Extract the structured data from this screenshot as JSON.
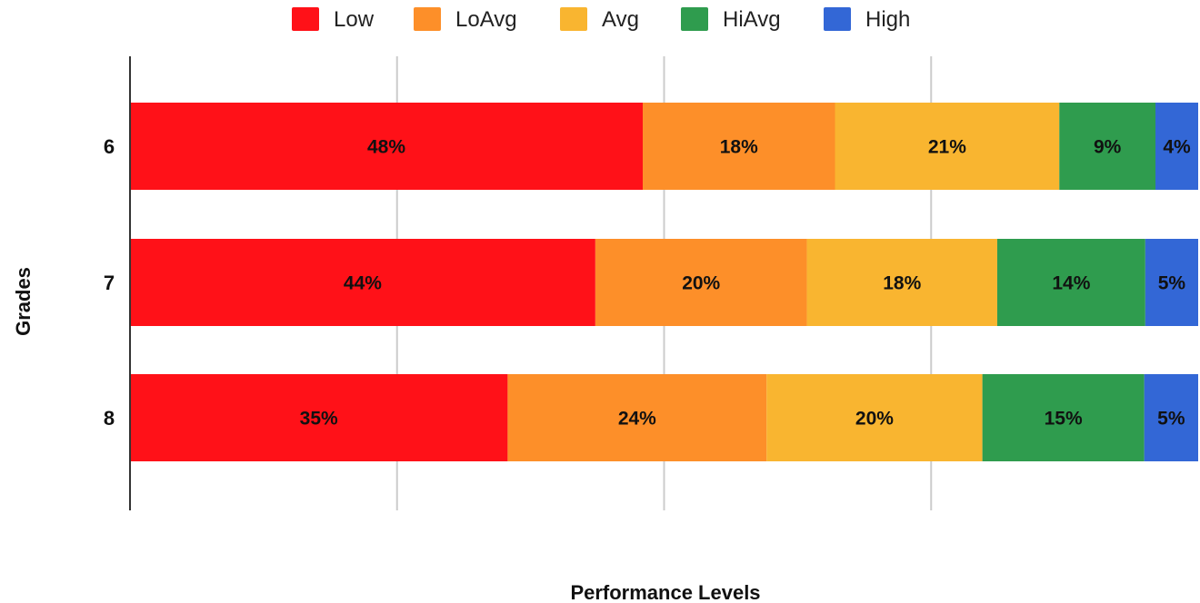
{
  "chart_data": {
    "type": "bar",
    "orientation": "horizontal",
    "stacked": true,
    "categories": [
      "6",
      "7",
      "8"
    ],
    "series": [
      {
        "name": "Low",
        "color": "#ff1118",
        "values": [
          48,
          44,
          35
        ]
      },
      {
        "name": "LoAvg",
        "color": "#fd8f29",
        "values": [
          18,
          20,
          24
        ]
      },
      {
        "name": "Avg",
        "color": "#f9b530",
        "values": [
          21,
          18,
          20
        ]
      },
      {
        "name": "HiAvg",
        "color": "#2f9c4e",
        "values": [
          9,
          14,
          15
        ]
      },
      {
        "name": "High",
        "color": "#3367d6",
        "values": [
          4,
          5,
          5
        ]
      }
    ],
    "data_labels": [
      [
        "48%",
        "18%",
        "21%",
        "9%",
        "4%"
      ],
      [
        "44%",
        "20%",
        "18%",
        "14%",
        "5%"
      ],
      [
        "35%",
        "24%",
        "20%",
        "15%",
        "5%"
      ]
    ],
    "xlabel": "Performance Levels",
    "ylabel": "Grades",
    "xlim": [
      0,
      100
    ],
    "grid": true,
    "legend": "top-center"
  }
}
